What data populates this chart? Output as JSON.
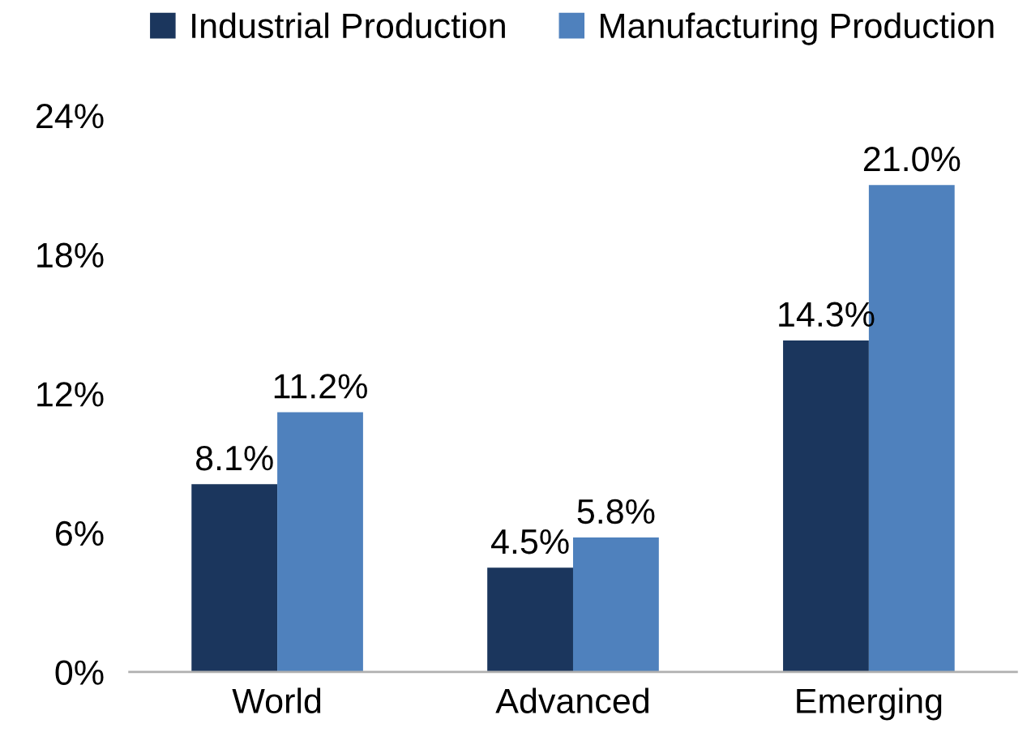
{
  "chart_data": {
    "type": "bar",
    "categories": [
      "World",
      "Advanced",
      "Emerging"
    ],
    "series": [
      {
        "name": "Industrial Production",
        "color": "#1b365d",
        "values": [
          8.1,
          4.5,
          14.3
        ],
        "value_labels": [
          "8.1%",
          "4.5%",
          "14.3%"
        ]
      },
      {
        "name": "Manufacturing Production",
        "color": "#4f81bd",
        "values": [
          11.2,
          5.8,
          21.0
        ],
        "value_labels": [
          "11.2%",
          "5.8%",
          "21.0%"
        ]
      }
    ],
    "ylim": [
      0,
      24
    ],
    "yticks": [
      {
        "value": 0,
        "label": "0%"
      },
      {
        "value": 6,
        "label": "6%"
      },
      {
        "value": 12,
        "label": "12%"
      },
      {
        "value": 18,
        "label": "18%"
      },
      {
        "value": 24,
        "label": "24%"
      }
    ],
    "grid": false,
    "legend": "top"
  }
}
